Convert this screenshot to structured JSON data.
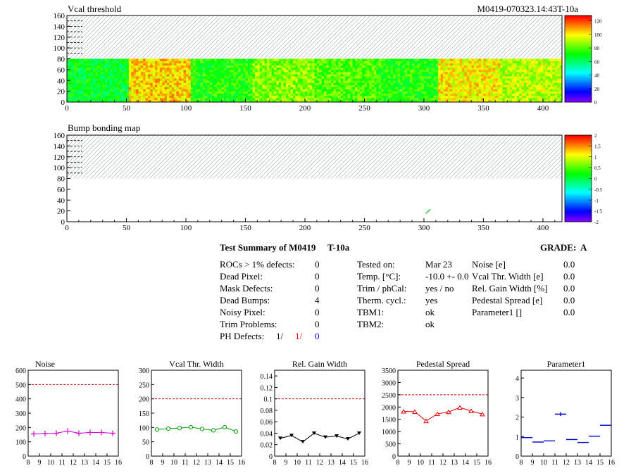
{
  "map_top": {
    "title": "Vcal threshold",
    "module_id": "M0419-070323.14:43T-10a",
    "xlim": [
      0,
      416
    ],
    "ylim": [
      0,
      160
    ],
    "x_ticks": [
      "0",
      "50",
      "100",
      "150",
      "200",
      "250",
      "300",
      "350",
      "400"
    ],
    "y_ticks": [
      "0",
      "20",
      "40",
      "60",
      "80",
      "100",
      "120",
      "140",
      "160"
    ],
    "colorbar": {
      "min": 0,
      "max": 128,
      "ticks": [
        "0",
        "20",
        "40",
        "60",
        "80",
        "100",
        "120"
      ]
    },
    "roc_values": [
      68,
      104,
      74,
      86,
      80,
      74,
      100,
      92
    ]
  },
  "map_bottom": {
    "title": "Bump bonding map",
    "xlim": [
      0,
      416
    ],
    "ylim": [
      0,
      160
    ],
    "x_ticks": [
      "0",
      "50",
      "100",
      "150",
      "200",
      "250",
      "300",
      "350",
      "400"
    ],
    "y_ticks": [
      "0",
      "20",
      "40",
      "60",
      "80",
      "100",
      "120",
      "140",
      "160"
    ],
    "colorbar": {
      "min": -2,
      "max": 2,
      "ticks": [
        "2",
        "1.5",
        "1",
        "0.5",
        "0",
        "-0.5",
        "-1",
        "-1.5",
        "-2"
      ]
    },
    "dead_bumps": [
      [
        302,
        16
      ],
      [
        303,
        18
      ],
      [
        304,
        20
      ],
      [
        305,
        22
      ]
    ]
  },
  "summary": {
    "title": "Test Summary of M0419",
    "test": "T-10a",
    "grade_label": "GRADE:",
    "grade": "A",
    "left": [
      {
        "label": "ROCs > 1% defects:",
        "value": "0"
      },
      {
        "label": "Dead Pixel:",
        "value": "0"
      },
      {
        "label": "Mask Defects:",
        "value": "0"
      },
      {
        "label": "Dead Bumps:",
        "value": "4"
      },
      {
        "label": "Noisy Pixel:",
        "value": "0"
      },
      {
        "label": "Trim Problems:",
        "value": "0"
      }
    ],
    "ph_label": "PH Defects:",
    "ph_values": [
      "1/",
      "1/",
      "0"
    ],
    "ph_colors": [
      "#000000",
      "#e00000",
      "#0000cc"
    ],
    "middle": [
      {
        "label": "Tested on:",
        "value": "Mar 23"
      },
      {
        "label": "Temp. [°C]:",
        "value": "-10.0 +- 0.0"
      },
      {
        "label": "Trim / phCal:",
        "value": "yes / no"
      },
      {
        "label": "Therm. cycl.:",
        "value": "yes"
      },
      {
        "label": "TBM1:",
        "value": "ok"
      },
      {
        "label": "TBM2:",
        "value": "ok"
      }
    ],
    "right": [
      {
        "label": "Noise [e]",
        "value": "0.0"
      },
      {
        "label": "Vcal Thr. Width [e]",
        "value": "0.0"
      },
      {
        "label": "Rel. Gain Width [%]",
        "value": "0.0"
      },
      {
        "label": "Pedestal Spread [e]",
        "value": "0.0"
      },
      {
        "label": "Parameter1 []",
        "value": "0.0"
      }
    ]
  },
  "chart_data": [
    {
      "type": "line",
      "title": "Noise",
      "x": [
        8.5,
        9.5,
        10.5,
        11.5,
        12.5,
        13.5,
        14.5,
        15.5
      ],
      "values": [
        155,
        158,
        160,
        175,
        160,
        165,
        165,
        160
      ],
      "error": [
        15,
        10,
        10,
        15,
        10,
        10,
        10,
        10
      ],
      "xlim": [
        8,
        16
      ],
      "ylim": [
        0,
        600
      ],
      "x_ticks": [
        "8",
        "9",
        "10",
        "11",
        "12",
        "13",
        "14",
        "15",
        "16"
      ],
      "y_ticks": [
        "0",
        "100",
        "200",
        "300",
        "400",
        "500",
        "600"
      ],
      "threshold": 500,
      "color": "#d400d4",
      "marker": "cross"
    },
    {
      "type": "line",
      "title": "Vcal Thr. Width",
      "x": [
        8.5,
        9.5,
        10.5,
        11.5,
        12.5,
        13.5,
        14.5,
        15.5
      ],
      "values": [
        93,
        96,
        98,
        101,
        95,
        90,
        101,
        86
      ],
      "xlim": [
        8,
        16
      ],
      "ylim": [
        0,
        300
      ],
      "x_ticks": [
        "8",
        "9",
        "10",
        "11",
        "12",
        "13",
        "14",
        "15",
        "16"
      ],
      "y_ticks": [
        "0",
        "50",
        "100",
        "150",
        "200",
        "250",
        "300"
      ],
      "threshold": 200,
      "color": "#00a000",
      "marker": "circle"
    },
    {
      "type": "line",
      "title": "Rel. Gain Width",
      "x": [
        8.5,
        9.5,
        10.5,
        11.5,
        12.5,
        13.5,
        14.5,
        15.5
      ],
      "values": [
        0.031,
        0.036,
        0.025,
        0.04,
        0.033,
        0.035,
        0.03,
        0.04
      ],
      "xlim": [
        8,
        16
      ],
      "ylim": [
        0,
        0.15
      ],
      "x_ticks": [
        "8",
        "9",
        "10",
        "11",
        "12",
        "13",
        "14",
        "15",
        "16"
      ],
      "y_ticks": [
        "0",
        "0.02",
        "0.04",
        "0.06",
        "0.08",
        "0.1",
        "0.12",
        "0.14"
      ],
      "threshold": 0.1,
      "color": "#000000",
      "marker": "triangle-down"
    },
    {
      "type": "line",
      "title": "Pedestal Spread",
      "x": [
        8.5,
        9.5,
        10.5,
        11.5,
        12.5,
        13.5,
        14.5,
        15.5
      ],
      "values": [
        1820,
        1810,
        1430,
        1720,
        1800,
        1980,
        1840,
        1710
      ],
      "xlim": [
        8,
        16
      ],
      "ylim": [
        0,
        3500
      ],
      "x_ticks": [
        "8",
        "9",
        "10",
        "11",
        "12",
        "13",
        "14",
        "15",
        "16"
      ],
      "y_ticks": [
        "0",
        "500",
        "1000",
        "1500",
        "2000",
        "2500",
        "3000",
        "3500"
      ],
      "threshold": 2500,
      "color": "#e00000",
      "marker": "triangle-up"
    },
    {
      "type": "scatter",
      "title": "Parameter1",
      "x": [
        8.5,
        9.5,
        10.5,
        11.5,
        12.5,
        13.5,
        14.5,
        15.5
      ],
      "values": [
        0.95,
        0.72,
        0.78,
        2.15,
        0.85,
        0.7,
        1.02,
        1.58
      ],
      "error": [
        0,
        0,
        0,
        0.1,
        0,
        0,
        0,
        0
      ],
      "xlim": [
        8,
        16
      ],
      "ylim": [
        0,
        4.4
      ],
      "x_ticks": [
        "8",
        "9",
        "10",
        "11",
        "12",
        "13",
        "14",
        "15",
        "16"
      ],
      "y_ticks": [
        "0",
        "1",
        "2",
        "3",
        "4"
      ],
      "color": "#0000cc",
      "marker": "hbar"
    }
  ]
}
